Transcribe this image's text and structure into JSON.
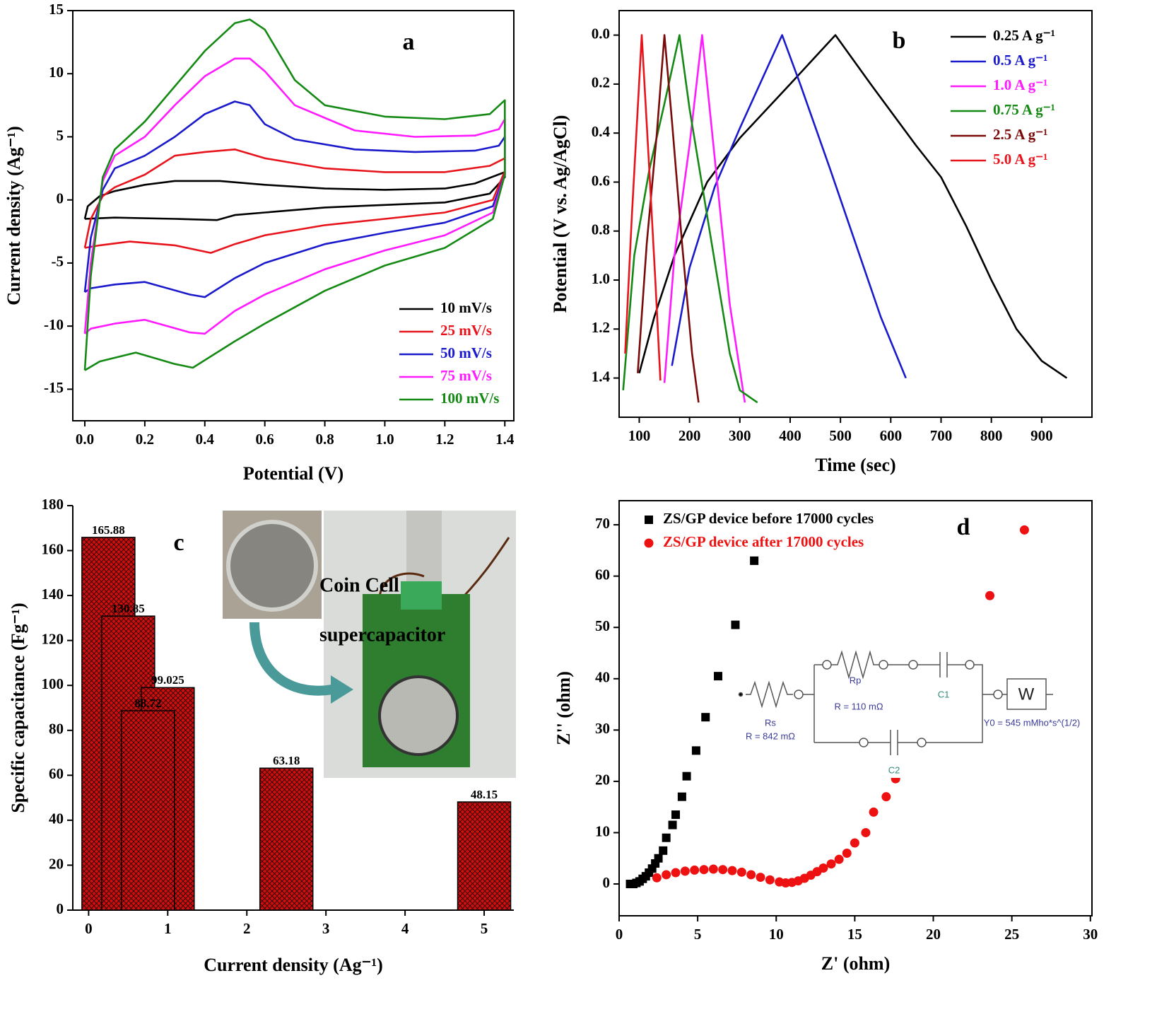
{
  "chart_data": [
    {
      "type": "line",
      "label": "a",
      "xlabel": "Potential (V)",
      "ylabel": "Current density (Ag⁻¹)",
      "xlim": [
        -0.04,
        1.43
      ],
      "ylim": [
        -17.5,
        15
      ],
      "xticks": [
        {
          "value": 0,
          "label": "0.0"
        },
        0.2,
        0.4,
        0.6,
        0.8,
        {
          "value": 1,
          "label": "1.0"
        },
        1.2,
        1.4
      ],
      "yticks": [
        -15,
        -10,
        -5,
        0,
        5,
        10,
        15
      ],
      "legend": "lower right",
      "series": [
        {
          "name": "10 mV/s",
          "color": "#000000",
          "x": [
            0,
            0.01,
            0.05,
            0.1,
            0.2,
            0.3,
            0.45,
            0.6,
            0.8,
            1.0,
            1.2,
            1.3,
            1.4,
            1.4,
            1.35,
            1.2,
            1.0,
            0.8,
            0.6,
            0.5,
            0.44,
            0.3,
            0.1,
            0
          ],
          "values": [
            -1.5,
            -0.5,
            0.3,
            0.7,
            1.2,
            1.5,
            1.5,
            1.2,
            0.9,
            0.8,
            0.9,
            1.3,
            2.2,
            1.8,
            0.5,
            -0.2,
            -0.4,
            -0.6,
            -1.0,
            -1.2,
            -1.6,
            -1.5,
            -1.4,
            -1.5
          ]
        },
        {
          "name": "25  mV/s",
          "color": "#e8141c",
          "x": [
            0,
            0.02,
            0.06,
            0.1,
            0.2,
            0.3,
            0.4,
            0.5,
            0.6,
            0.8,
            1.0,
            1.2,
            1.35,
            1.4,
            1.4,
            1.36,
            1.2,
            1.0,
            0.8,
            0.6,
            0.5,
            0.42,
            0.3,
            0.15,
            0.05,
            0
          ],
          "values": [
            -3.8,
            -1.5,
            0.3,
            1.0,
            2.0,
            3.5,
            3.8,
            4.0,
            3.3,
            2.5,
            2.2,
            2.2,
            2.7,
            3.3,
            2.3,
            0.0,
            -1.0,
            -1.5,
            -2.0,
            -2.8,
            -3.5,
            -4.2,
            -3.6,
            -3.3,
            -3.6,
            -3.8
          ]
        },
        {
          "name": "50  mV/s",
          "color": "#1a1acc",
          "x": [
            0,
            0.02,
            0.06,
            0.1,
            0.2,
            0.3,
            0.4,
            0.5,
            0.55,
            0.6,
            0.7,
            0.9,
            1.1,
            1.3,
            1.38,
            1.4,
            1.4,
            1.36,
            1.2,
            1.0,
            0.8,
            0.6,
            0.5,
            0.4,
            0.35,
            0.2,
            0.1,
            0.02,
            0
          ],
          "values": [
            -7.3,
            -3,
            0.8,
            2.5,
            3.5,
            5.0,
            6.8,
            7.8,
            7.5,
            6.0,
            4.8,
            4.0,
            3.8,
            3.9,
            4.3,
            5.0,
            2.0,
            -0.5,
            -1.8,
            -2.6,
            -3.5,
            -5.0,
            -6.2,
            -7.7,
            -7.5,
            -6.5,
            -6.7,
            -7.0,
            -7.3
          ]
        },
        {
          "name": "75  mV/s",
          "color": "#ff1aff",
          "x": [
            0,
            0.02,
            0.06,
            0.1,
            0.2,
            0.3,
            0.4,
            0.5,
            0.55,
            0.6,
            0.7,
            0.9,
            1.1,
            1.3,
            1.38,
            1.4,
            1.4,
            1.36,
            1.2,
            1.0,
            0.8,
            0.6,
            0.5,
            0.4,
            0.35,
            0.2,
            0.1,
            0.02,
            0
          ],
          "values": [
            -10.6,
            -5,
            1.5,
            3.5,
            5.0,
            7.5,
            9.8,
            11.2,
            11.2,
            10.2,
            7.5,
            5.5,
            5.0,
            5.1,
            5.6,
            6.4,
            2.0,
            -1.0,
            -2.8,
            -4.0,
            -5.5,
            -7.5,
            -8.8,
            -10.6,
            -10.5,
            -9.5,
            -9.8,
            -10.2,
            -10.6
          ]
        },
        {
          "name": "100  mV/s",
          "color": "#148a14",
          "x": [
            0,
            0.02,
            0.06,
            0.1,
            0.2,
            0.3,
            0.4,
            0.5,
            0.55,
            0.6,
            0.7,
            0.8,
            1.0,
            1.2,
            1.35,
            1.4,
            1.4,
            1.36,
            1.2,
            1.0,
            0.8,
            0.6,
            0.5,
            0.36,
            0.3,
            0.17,
            0.05,
            0
          ],
          "values": [
            -13.5,
            -6,
            1.8,
            4.0,
            6.2,
            9.0,
            11.8,
            14.0,
            14.3,
            13.5,
            9.5,
            7.5,
            6.6,
            6.4,
            6.8,
            7.9,
            2.0,
            -1.5,
            -3.8,
            -5.2,
            -7.2,
            -9.8,
            -11.2,
            -13.3,
            -13.0,
            -12.1,
            -12.8,
            -13.5
          ]
        }
      ]
    },
    {
      "type": "line",
      "label": "b",
      "xlabel": "Time (sec)",
      "ylabel": "Potential (V vs. Ag/AgCl)",
      "xlim": [
        60,
        1000
      ],
      "ylim": [
        1.56,
        -0.1
      ],
      "xticks": [
        100,
        200,
        300,
        400,
        500,
        600,
        700,
        800,
        900
      ],
      "yticks": [
        {
          "value": 0,
          "label": "0.0"
        },
        0.2,
        0.4,
        0.6,
        0.8,
        {
          "value": 1,
          "label": "1.0"
        },
        1.2,
        1.4
      ],
      "legend": "upper right",
      "series": [
        {
          "name": "0.25 A g⁻¹",
          "color": "#000000",
          "x": [
            100,
            130,
            170,
            235,
            300,
            400,
            490,
            560,
            650,
            700,
            750,
            800,
            850,
            900,
            950
          ],
          "values": [
            1.38,
            1.15,
            0.9,
            0.6,
            0.42,
            0.2,
            0,
            0.2,
            0.45,
            0.58,
            0.78,
            1.0,
            1.2,
            1.33,
            1.4
          ]
        },
        {
          "name": "0.5 A g⁻¹",
          "color": "#1a1acc",
          "x": [
            165,
            200,
            250,
            300,
            384,
            420,
            480,
            530,
            580,
            630
          ],
          "values": [
            1.35,
            0.95,
            0.62,
            0.38,
            0,
            0.2,
            0.55,
            0.85,
            1.15,
            1.4
          ]
        },
        {
          "name": "1.0 A g⁻¹",
          "color": "#ff1aff",
          "x": [
            150,
            170,
            200,
            225,
            240,
            260,
            280,
            310
          ],
          "values": [
            1.42,
            0.9,
            0.45,
            0,
            0.3,
            0.7,
            1.1,
            1.5
          ]
        },
        {
          "name": "0.75 A g⁻¹",
          "color": "#148a14",
          "x": [
            68,
            90,
            120,
            150,
            180,
            200,
            240,
            280,
            300,
            335
          ],
          "values": [
            1.45,
            0.9,
            0.55,
            0.28,
            0,
            0.3,
            0.8,
            1.3,
            1.45,
            1.5
          ]
        },
        {
          "name": "2.5 A g⁻¹",
          "color": "#7a0a0a",
          "x": [
            97,
            115,
            135,
            150,
            165,
            185,
            205,
            218
          ],
          "values": [
            1.38,
            0.85,
            0.4,
            0,
            0.35,
            0.85,
            1.3,
            1.5
          ]
        },
        {
          "name": "5.0 A g⁻¹",
          "color": "#e8141c",
          "x": [
            72,
            85,
            105,
            120,
            132,
            142
          ],
          "values": [
            1.3,
            0.75,
            0,
            0.55,
            1.0,
            1.41
          ]
        }
      ]
    },
    {
      "type": "bar",
      "label": "c",
      "xlabel": "Current density (Ag⁻¹)",
      "ylabel": "Specific capacitance (Fg⁻¹)",
      "xlim": [
        -0.2,
        5.375
      ],
      "ylim": [
        0,
        180
      ],
      "xticks": [
        0,
        1,
        2,
        3,
        4,
        5
      ],
      "yticks": [
        0,
        20,
        40,
        60,
        80,
        100,
        120,
        140,
        160,
        180
      ],
      "color": "#cc1010",
      "x": [
        0.25,
        0.5,
        1.0,
        0.75,
        2.5,
        5.0
      ],
      "values": [
        165.88,
        130.85,
        99.025,
        88.72,
        63.18,
        48.15
      ],
      "inset_text": [
        "Coin Cell",
        "supercapacitor"
      ]
    },
    {
      "type": "scatter",
      "label": "d",
      "xlabel": "Z' (ohm)",
      "ylabel": "Z'' (ohm)",
      "xlim": [
        0,
        30.1
      ],
      "ylim": [
        -6.2,
        74.7
      ],
      "xticks": [
        0,
        5,
        10,
        15,
        20,
        25,
        30
      ],
      "yticks": [
        0,
        10,
        20,
        30,
        40,
        50,
        60,
        70
      ],
      "legend": "upper left",
      "series": [
        {
          "name": "ZS/GP device before 17000 cycles",
          "color": "#000000",
          "marker": "square",
          "x": [
            0.7,
            0.9,
            1.1,
            1.3,
            1.5,
            1.7,
            1.9,
            2.1,
            2.3,
            2.5,
            2.8,
            3.0,
            3.4,
            3.6,
            4.0,
            4.3,
            4.9,
            5.5,
            6.3,
            7.4,
            8.6
          ],
          "values": [
            0,
            0,
            0.2,
            0.5,
            1,
            1.5,
            2.2,
            3,
            4,
            5,
            6.5,
            9,
            11.5,
            13.5,
            17,
            21,
            26,
            32.5,
            40.5,
            50.5,
            63
          ]
        },
        {
          "name": "ZS/GP device after 17000 cycles",
          "color": "#ee1111",
          "marker": "circle",
          "x": [
            2.4,
            3,
            3.6,
            4.2,
            4.8,
            5.4,
            6.0,
            6.6,
            7.2,
            7.8,
            8.4,
            9.0,
            9.6,
            10.2,
            10.6,
            11,
            11.4,
            11.8,
            12.2,
            12.6,
            13,
            13.5,
            14,
            14.5,
            15,
            15.7,
            16.2,
            17,
            17.6,
            23.6,
            25.8
          ],
          "values": [
            1.2,
            1.8,
            2.2,
            2.5,
            2.7,
            2.8,
            2.9,
            2.8,
            2.6,
            2.3,
            1.8,
            1.3,
            0.8,
            0.4,
            0.2,
            0.3,
            0.6,
            1.1,
            1.7,
            2.4,
            3.1,
            3.9,
            4.8,
            6,
            8,
            10,
            14,
            17,
            20.5,
            56.2,
            69
          ]
        }
      ],
      "circuit": {
        "rs": "Rs",
        "rs_value": "R = 842 mΩ",
        "rp": "Rp",
        "rp_value": "R = 110 mΩ",
        "c1": "C1",
        "c2": "C2",
        "w": "W",
        "w_value": "Y0 = 545 mMho*s^(1/2)"
      }
    }
  ]
}
